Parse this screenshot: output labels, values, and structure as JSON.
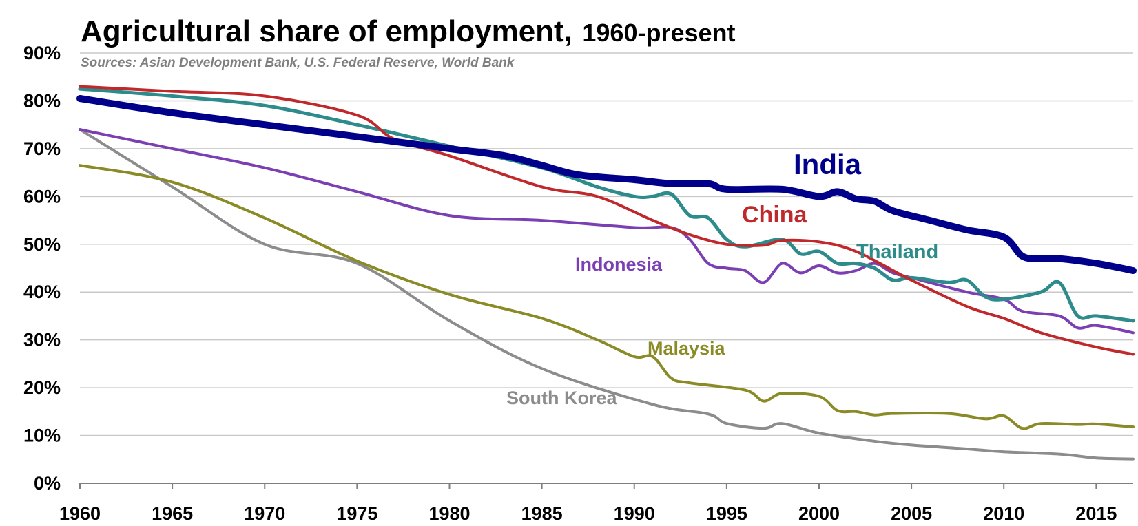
{
  "chart_data": {
    "type": "line",
    "title": "Agricultural share of employment,",
    "title_suffix": "1960-present",
    "subtitle": "Sources: Asian Development Bank, U.S. Federal Reserve, World Bank",
    "xlabel": "",
    "ylabel": "",
    "xlim": [
      1960,
      2017
    ],
    "ylim": [
      0,
      90
    ],
    "x_ticks": [
      1960,
      1965,
      1970,
      1975,
      1980,
      1985,
      1990,
      1995,
      2000,
      2005,
      2010,
      2015
    ],
    "y_ticks": [
      "0%",
      "10%",
      "20%",
      "30%",
      "40%",
      "50%",
      "60%",
      "70%",
      "80%",
      "90%"
    ],
    "grid": "horizontal",
    "legend": "inline labels",
    "series": [
      {
        "name": "South Korea",
        "color": "#8c8c8c",
        "points": [
          [
            1960,
            74
          ],
          [
            1965,
            62
          ],
          [
            1970,
            50
          ],
          [
            1975,
            46
          ],
          [
            1980,
            34
          ],
          [
            1985,
            24
          ],
          [
            1991,
            16.5
          ],
          [
            1994,
            14.5
          ],
          [
            1995,
            12.5
          ],
          [
            1997,
            11.5
          ],
          [
            1998,
            12.5
          ],
          [
            2000,
            10.5
          ],
          [
            2003,
            8.8
          ],
          [
            2005,
            8
          ],
          [
            2008,
            7.2
          ],
          [
            2010,
            6.6
          ],
          [
            2013,
            6.1
          ],
          [
            2015,
            5.3
          ],
          [
            2017,
            5.1
          ]
        ]
      },
      {
        "name": "Malaysia",
        "color": "#8a8a26",
        "points": [
          [
            1960,
            66.5
          ],
          [
            1965,
            63
          ],
          [
            1970,
            55.5
          ],
          [
            1975,
            46.5
          ],
          [
            1980,
            39.5
          ],
          [
            1985,
            34.5
          ],
          [
            1988,
            30
          ],
          [
            1990,
            26.5
          ],
          [
            1991,
            26.5
          ],
          [
            1992,
            22
          ],
          [
            1993,
            21
          ],
          [
            1996,
            19.5
          ],
          [
            1997,
            17.2
          ],
          [
            1998,
            18.8
          ],
          [
            2000,
            18.2
          ],
          [
            2001,
            15.2
          ],
          [
            2002,
            15
          ],
          [
            2003,
            14.3
          ],
          [
            2004,
            14.6
          ],
          [
            2007,
            14.6
          ],
          [
            2009,
            13.5
          ],
          [
            2010,
            14.1
          ],
          [
            2011,
            11.5
          ],
          [
            2012,
            12.5
          ],
          [
            2014,
            12.3
          ],
          [
            2015,
            12.4
          ],
          [
            2017,
            11.8
          ]
        ]
      },
      {
        "name": "Indonesia",
        "color": "#7a3fb3",
        "points": [
          [
            1960,
            74
          ],
          [
            1965,
            70
          ],
          [
            1970,
            66
          ],
          [
            1975,
            61
          ],
          [
            1980,
            56
          ],
          [
            1985,
            55
          ],
          [
            1990,
            53.5
          ],
          [
            1992,
            53.5
          ],
          [
            1993,
            51
          ],
          [
            1994,
            46
          ],
          [
            1995,
            45
          ],
          [
            1996,
            44.5
          ],
          [
            1997,
            42
          ],
          [
            1998,
            46
          ],
          [
            1999,
            44
          ],
          [
            2000,
            45.5
          ],
          [
            2001,
            44
          ],
          [
            2002,
            44.5
          ],
          [
            2003,
            46
          ],
          [
            2004,
            44
          ],
          [
            2005,
            43
          ],
          [
            2008,
            40
          ],
          [
            2010,
            38.5
          ],
          [
            2011,
            36
          ],
          [
            2013,
            35
          ],
          [
            2014,
            32.5
          ],
          [
            2015,
            33
          ],
          [
            2017,
            31.5
          ]
        ]
      },
      {
        "name": "Thailand",
        "color": "#2e8b8b",
        "points": [
          [
            1960,
            82.5
          ],
          [
            1965,
            81
          ],
          [
            1970,
            79
          ],
          [
            1975,
            75
          ],
          [
            1980,
            70.5
          ],
          [
            1985,
            66
          ],
          [
            1988,
            62
          ],
          [
            1990,
            60
          ],
          [
            1991,
            60
          ],
          [
            1992,
            60.5
          ],
          [
            1993,
            56
          ],
          [
            1994,
            55.5
          ],
          [
            1995,
            51
          ],
          [
            1996,
            49.5
          ],
          [
            1998,
            51
          ],
          [
            1999,
            48
          ],
          [
            2000,
            48.5
          ],
          [
            2001,
            46
          ],
          [
            2002,
            46
          ],
          [
            2003,
            45
          ],
          [
            2004,
            42.5
          ],
          [
            2005,
            43
          ],
          [
            2007,
            42
          ],
          [
            2008,
            42.5
          ],
          [
            2009,
            39
          ],
          [
            2010,
            38.5
          ],
          [
            2012,
            40
          ],
          [
            2013,
            42
          ],
          [
            2014,
            35
          ],
          [
            2015,
            35
          ],
          [
            2017,
            34
          ]
        ]
      },
      {
        "name": "China",
        "color": "#c0292b",
        "points": [
          [
            1960,
            83
          ],
          [
            1965,
            82
          ],
          [
            1970,
            81
          ],
          [
            1975,
            77
          ],
          [
            1977,
            72
          ],
          [
            1980,
            68.5
          ],
          [
            1985,
            62
          ],
          [
            1988,
            60
          ],
          [
            1991,
            55
          ],
          [
            1993,
            52
          ],
          [
            1995,
            50
          ],
          [
            1997,
            49.8
          ],
          [
            1998,
            50.8
          ],
          [
            2000,
            50.5
          ],
          [
            2002,
            48.5
          ],
          [
            2005,
            42.5
          ],
          [
            2008,
            37
          ],
          [
            2010,
            34.5
          ],
          [
            2012,
            31.5
          ],
          [
            2015,
            28.5
          ],
          [
            2017,
            27
          ]
        ]
      },
      {
        "name": "India",
        "color": "#00008b",
        "points": [
          [
            1960,
            80.5
          ],
          [
            1965,
            77.5
          ],
          [
            1970,
            75
          ],
          [
            1975,
            72.5
          ],
          [
            1980,
            70
          ],
          [
            1983,
            68.5
          ],
          [
            1985,
            66.5
          ],
          [
            1987,
            64.5
          ],
          [
            1990,
            63.5
          ],
          [
            1992,
            62.7
          ],
          [
            1994,
            62.7
          ],
          [
            1995,
            61.5
          ],
          [
            1998,
            61.5
          ],
          [
            2000,
            60
          ],
          [
            2001,
            61
          ],
          [
            2002,
            59.5
          ],
          [
            2003,
            59
          ],
          [
            2004,
            57
          ],
          [
            2006,
            55
          ],
          [
            2008,
            53
          ],
          [
            2010,
            51.5
          ],
          [
            2011,
            47.5
          ],
          [
            2012,
            47
          ],
          [
            2013,
            47
          ],
          [
            2015,
            46
          ],
          [
            2017,
            44.5
          ]
        ]
      }
    ]
  }
}
